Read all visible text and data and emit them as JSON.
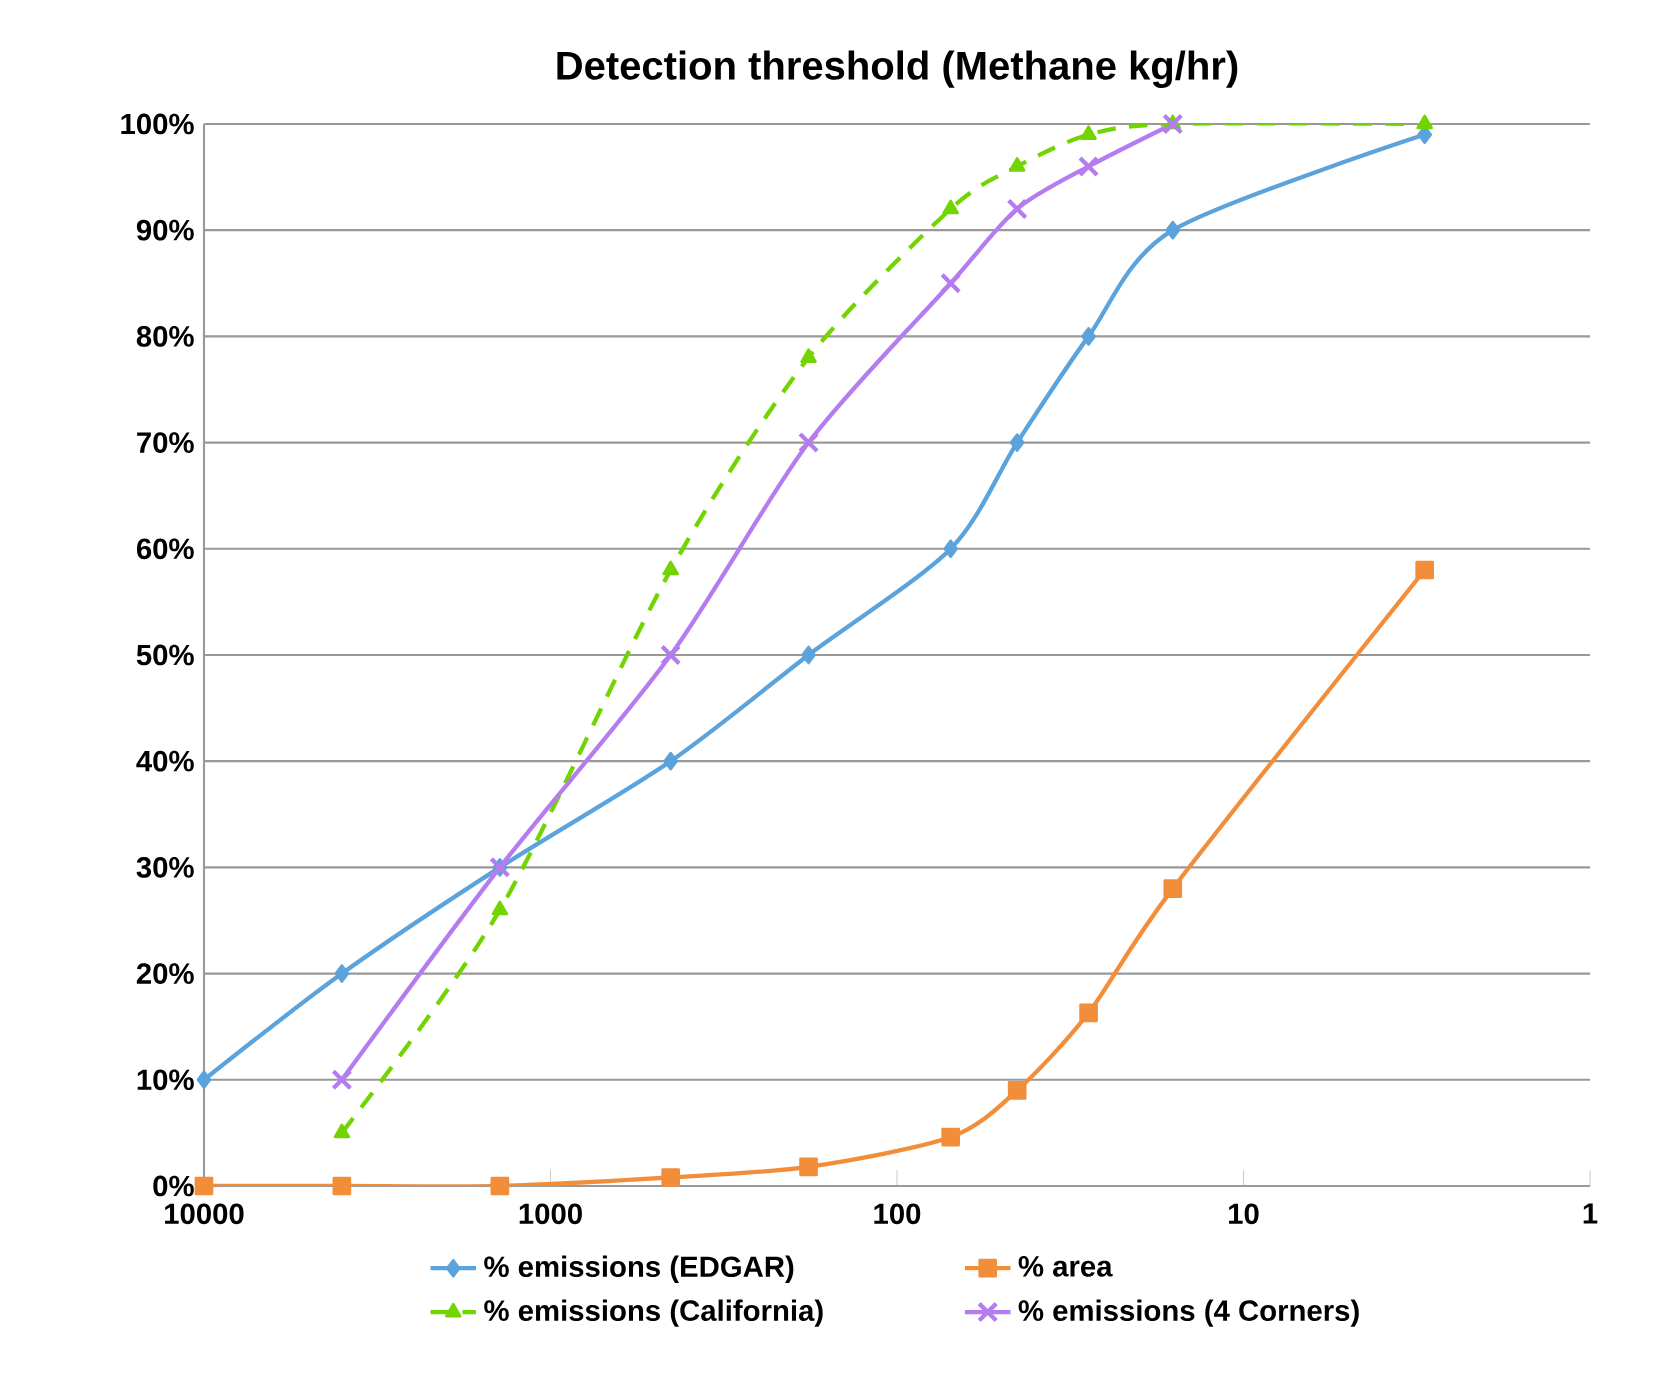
{
  "chart_data": {
    "type": "line",
    "title": "Detection threshold (Methane kg/hr)",
    "x": [
      10000,
      4000,
      1400,
      450,
      180,
      70,
      45,
      28,
      16,
      3
    ],
    "series": [
      {
        "name": "% emissions (EDGAR)",
        "color": "#5ba3dc",
        "marker": "diamond",
        "line_style": "solid",
        "values": [
          10,
          20,
          30,
          40,
          50,
          60,
          70,
          80,
          90,
          99
        ]
      },
      {
        "name": "% area",
        "color": "#f28e3a",
        "marker": "square",
        "line_style": "solid",
        "values": [
          0,
          0,
          0,
          0.8,
          1.8,
          4.6,
          9,
          16.3,
          28,
          58
        ]
      },
      {
        "name": "% emissions (California)",
        "color": "#72d400",
        "marker": "triangle",
        "line_style": "dashed",
        "values": [
          null,
          5,
          26,
          58,
          78,
          92,
          96,
          99,
          100,
          100
        ]
      },
      {
        "name": "% emissions (4 Corners)",
        "color": "#b57cf0",
        "marker": "cross",
        "line_style": "solid",
        "values": [
          null,
          10,
          30,
          50,
          70,
          85,
          92,
          96,
          100,
          null
        ]
      }
    ],
    "log": "x",
    "xlim": [
      10000,
      1
    ],
    "xticks": [
      10000,
      1000,
      100,
      10,
      1
    ],
    "ylim": [
      0,
      100
    ],
    "yticks": [
      {
        "value": 0,
        "label": "0%"
      },
      {
        "value": 10,
        "label": "10%"
      },
      {
        "value": 20,
        "label": "20%"
      },
      {
        "value": 30,
        "label": "30%"
      },
      {
        "value": 40,
        "label": "40%"
      },
      {
        "value": 50,
        "label": "50%"
      },
      {
        "value": 60,
        "label": "60%"
      },
      {
        "value": 70,
        "label": "70%"
      },
      {
        "value": 80,
        "label": "80%"
      },
      {
        "value": 90,
        "label": "90%"
      },
      {
        "value": 100,
        "label": "100%"
      }
    ],
    "grid": "y",
    "legend": "bottom"
  }
}
